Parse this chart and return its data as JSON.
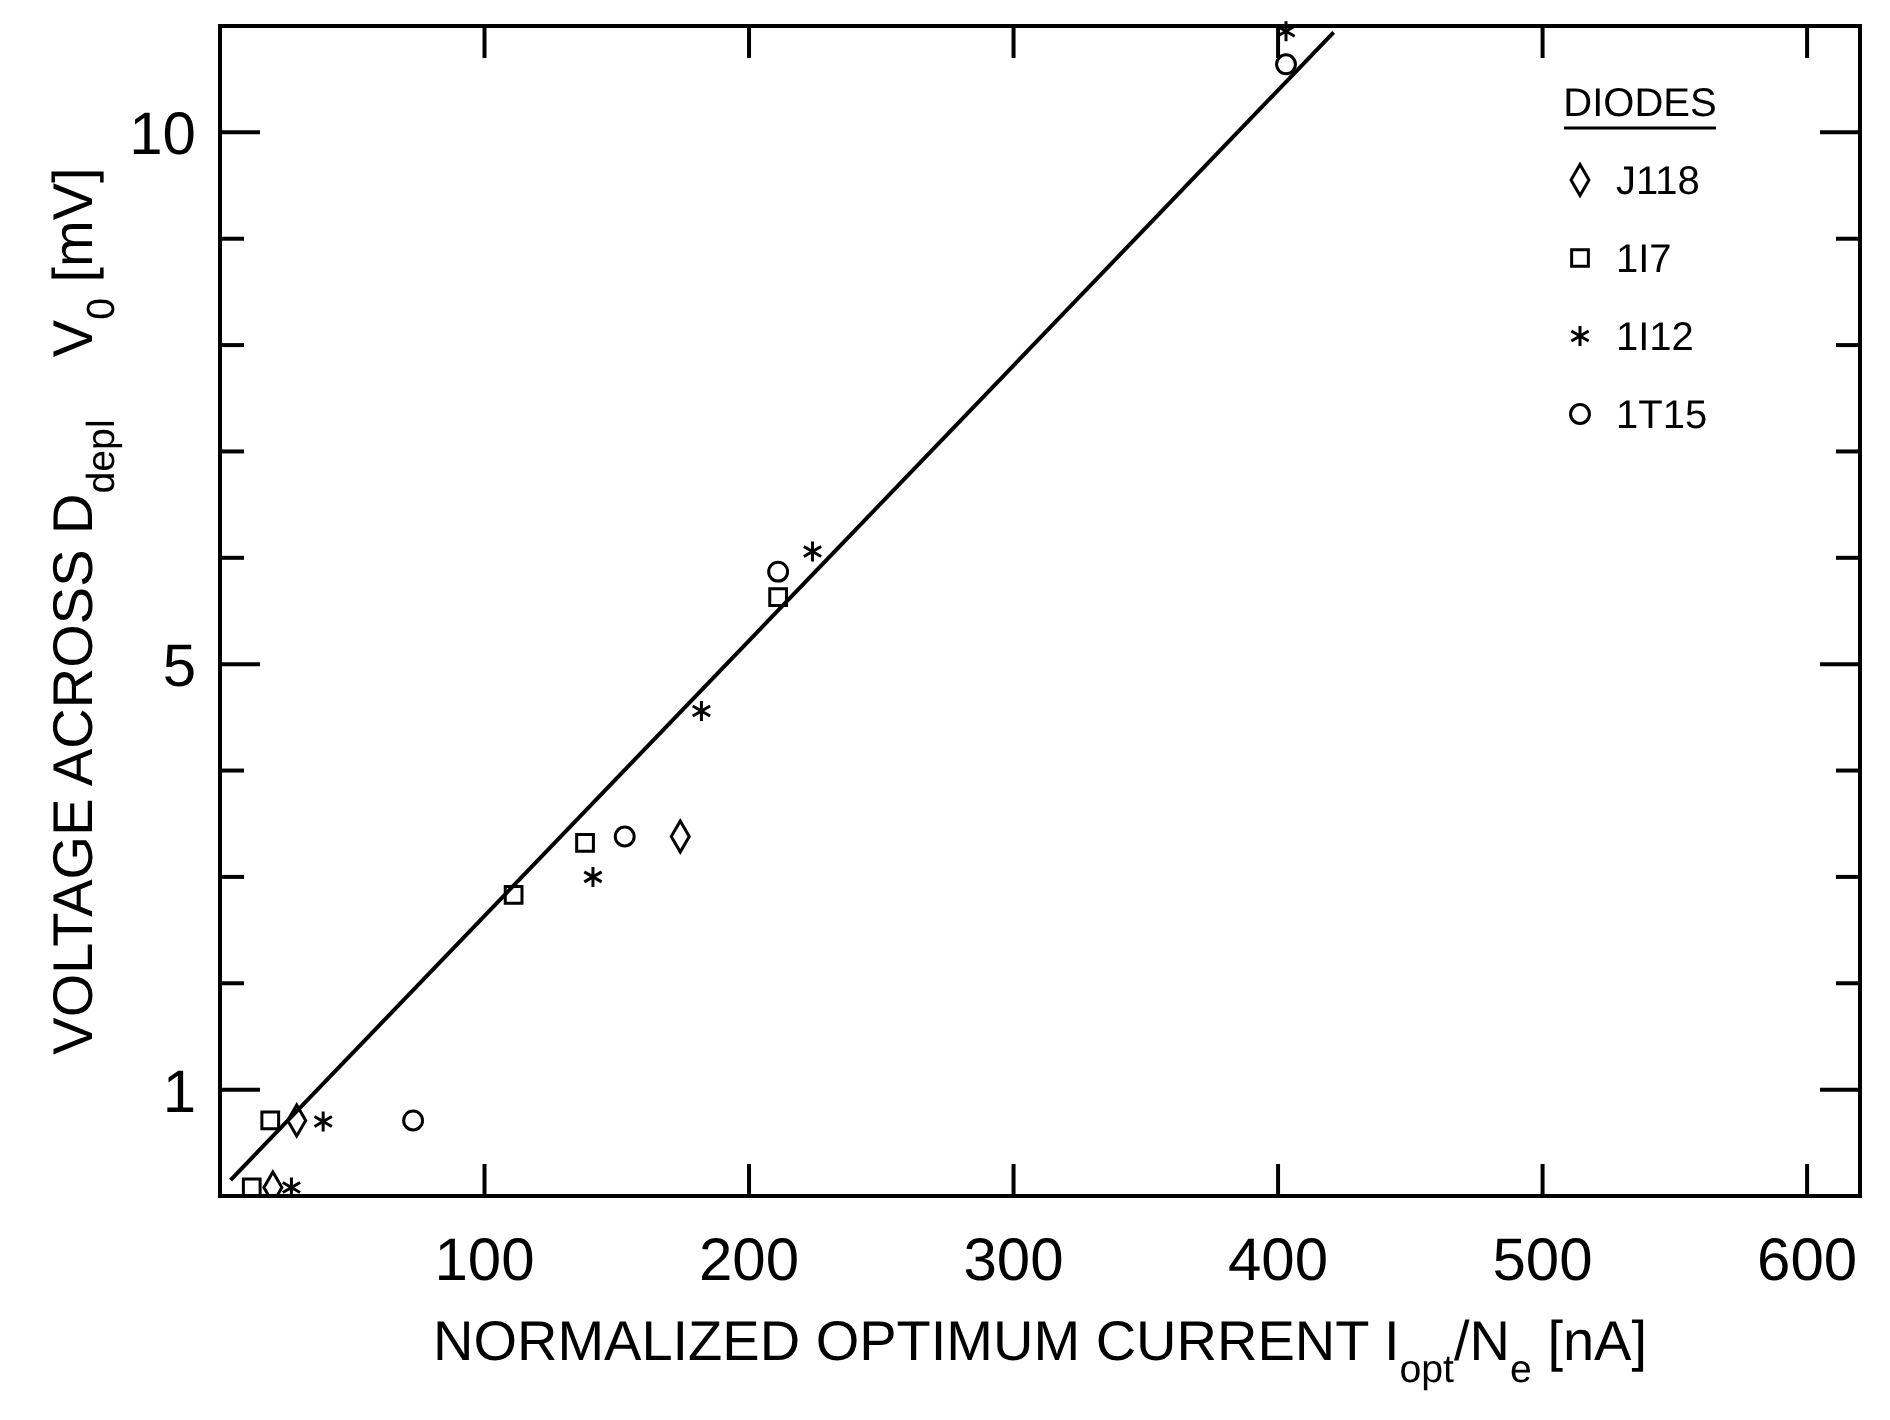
{
  "chart_data": {
    "type": "scatter",
    "xlabel": "NORMALIZED OPTIMUM CURRENT I$_{opt}$/N$_{e}$ [nA]",
    "ylabel": "VOLTAGE ACROSS D$_{depl}$    V$_{0}$ [mV]",
    "legend_title": "DIODES",
    "legend": "top right",
    "grid": false,
    "xlim": [
      0,
      620
    ],
    "xticks": [
      100,
      200,
      300,
      400,
      500,
      600
    ],
    "ylim": [
      0,
      11
    ],
    "yticks": [
      1,
      {
        "value": 2,
        "label": null
      },
      {
        "value": 3,
        "label": null
      },
      {
        "value": 4,
        "label": null
      },
      5,
      {
        "value": 6,
        "label": null
      },
      {
        "value": 7,
        "label": null
      },
      {
        "value": 8,
        "label": null
      },
      {
        "value": 9,
        "label": null
      },
      10
    ],
    "series": [
      {
        "name": "J118",
        "color": "#000000",
        "marker": "diamond",
        "x": [
          20,
          29,
          174
        ],
        "values": [
          0.08,
          0.71,
          3.38
        ]
      },
      {
        "name": "1I7",
        "color": "#000000",
        "marker": "square",
        "x": [
          12,
          19,
          111,
          138,
          211
        ],
        "values": [
          0.08,
          0.71,
          2.83,
          3.32,
          5.63
        ]
      },
      {
        "name": "1I12",
        "color": "#000000",
        "marker": "cross",
        "x": [
          27,
          39,
          141,
          182,
          224,
          403
        ],
        "values": [
          0.08,
          0.7,
          3.0,
          4.56,
          6.06,
          10.95
        ]
      },
      {
        "name": "1T15",
        "color": "#000000",
        "marker": "circle",
        "x": [
          73,
          153,
          211,
          403
        ],
        "values": [
          0.71,
          3.38,
          5.87,
          10.64
        ]
      },
      {
        "type": "line",
        "color": "#000000",
        "line_style": "solid",
        "x": [
          4,
          421
        ],
        "values": [
          0.15,
          10.94
        ]
      }
    ]
  }
}
